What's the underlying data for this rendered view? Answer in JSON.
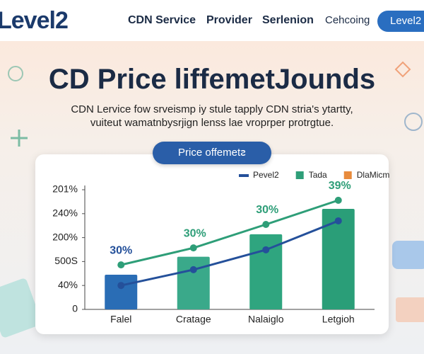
{
  "header": {
    "logo": "Level2",
    "nav": [
      "CDN Service",
      "Provider",
      "Serlenion",
      "Cehcoing"
    ],
    "button": "Level2"
  },
  "hero": {
    "title": "CD Price liffemetJounds",
    "subtitle": [
      "CDN Lervice fow srveismp iy stule tapply CDN stria's ytartty,",
      "vuiteut wamatnbysrjign lenss lae vroprper protrgtue."
    ],
    "button": "Price offemetꙅ"
  },
  "chart_data": {
    "type": "bar",
    "categories": [
      "Falel",
      "Cratage",
      "Nalaiglo",
      "Letgioh"
    ],
    "series": [
      {
        "name": "Pevel2",
        "type": "line",
        "color": "#24509a",
        "values": [
          1.0,
          1.66,
          2.49,
          3.7
        ]
      },
      {
        "name": "Tada",
        "type": "line",
        "color": "#2e9e78",
        "values": [
          1.86,
          2.57,
          3.55,
          4.56
        ]
      },
      {
        "name": "DlaMicm",
        "type": "bar",
        "color": "#e88b3c",
        "bar_colors": [
          "#2a6db5",
          "#3aa98a",
          "#2fa57f",
          "#2a9e78"
        ],
        "values": [
          1.45,
          2.2,
          3.14,
          4.2
        ]
      }
    ],
    "annotations": [
      {
        "text": "30%",
        "color": "#24509a"
      },
      {
        "text": "30%",
        "color": "#2e9e78"
      },
      {
        "text": "30%",
        "color": "#2e9e78"
      },
      {
        "text": "39%",
        "color": "#2e9e78"
      }
    ],
    "ylim": [
      0,
      5
    ],
    "yticks": [
      0,
      {
        "value": 1,
        "label": "40%"
      },
      {
        "value": 2,
        "label": "500S"
      },
      {
        "value": 3,
        "label": "200%"
      },
      {
        "value": 4,
        "label": "240%"
      },
      {
        "value": 5,
        "label": "201%"
      }
    ]
  }
}
